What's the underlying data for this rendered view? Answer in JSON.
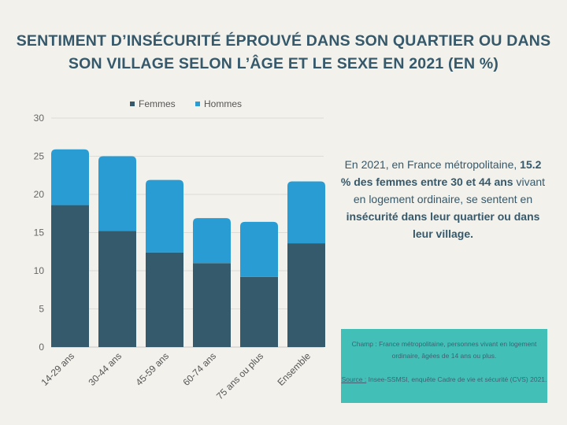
{
  "title": "SENTIMENT D’INSÉCURITÉ ÉPROUVÉ DANS SON QUARTIER OU DANS SON VILLAGE SELON L’ÂGE ET LE SEXE EN 2021 (EN %)",
  "note": {
    "p1": "En 2021, en France métropolitaine, ",
    "b1": "15.2 % des femmes entre 30 et 44 ans",
    "p2": " vivant en logement ordinaire, se sentent en ",
    "b2": "insécurité dans leur quartier ou dans leur village."
  },
  "source": {
    "champ": "Champ : France métropolitaine, personnes vivant en logement ordinaire, âgées de 14 ans ou plus.",
    "source_label": "Source :",
    "source_text": " Insee-SSMSI, enquête Cadre de vie et sécurité (CVS) 2021."
  },
  "chart_data": {
    "type": "bar",
    "stacked": true,
    "categories": [
      "14-29 ans",
      "30-44 ans",
      "45-59 ans",
      "60-74 ans",
      "75 ans ou plus",
      "Ensemble"
    ],
    "series": [
      {
        "name": "Femmes",
        "color": "#355a6b",
        "values": [
          18.6,
          15.2,
          12.4,
          11.0,
          9.2,
          13.6
        ]
      },
      {
        "name": "Hommes",
        "color": "#299dd3",
        "values": [
          7.3,
          9.8,
          9.5,
          5.9,
          7.2,
          8.1
        ]
      }
    ],
    "ylim": [
      0,
      30
    ],
    "yticks": [
      0,
      5,
      10,
      15,
      20,
      25,
      30
    ],
    "grid": true,
    "legend": "top"
  }
}
